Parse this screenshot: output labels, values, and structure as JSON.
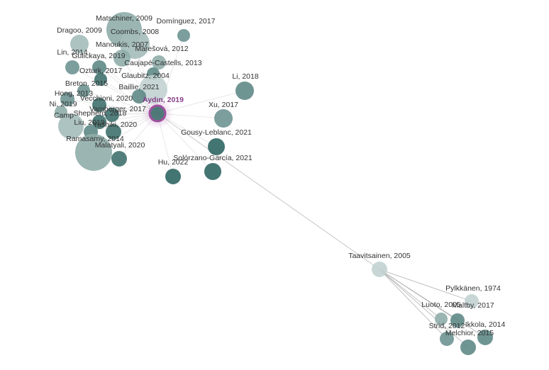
{
  "nodes": [
    {
      "label": "Matschiner, 2009"
    },
    {
      "label": "Domínguez, 2017"
    },
    {
      "label": "Coombs, 2008"
    },
    {
      "label": "Dragoo, 2009"
    },
    {
      "label": "Manoukis, 2007"
    },
    {
      "label": "Lin, 2014"
    },
    {
      "label": "Marešová, 2012"
    },
    {
      "label": "Gulickaya, 2019"
    },
    {
      "label": "Caujapé-Castells, 2013"
    },
    {
      "label": "Ozturk, 2017"
    },
    {
      "label": "Glaubitz, 2004"
    },
    {
      "label": "Breton, 2015"
    },
    {
      "label": "Baillie, 2021"
    },
    {
      "label": "Hong, 2013"
    },
    {
      "label": "Vecchioni, 2020"
    },
    {
      "label": "Ni, 2019"
    },
    {
      "label": "Vamberger, 2017"
    },
    {
      "label": "Camp"
    },
    {
      "label": "Shepherd, 2018"
    },
    {
      "label": "Liu, 2019"
    },
    {
      "label": "Yashiki, 2020"
    },
    {
      "label": "Ramasamy, 2014"
    },
    {
      "label": "Malatyali, 2020"
    },
    {
      "label": "Aydın, 2019"
    },
    {
      "label": "Li, 2018"
    },
    {
      "label": "Xu, 2017"
    },
    {
      "label": "Gousy-Leblanc, 2021"
    },
    {
      "label": "Solórzano-García, 2021"
    },
    {
      "label": "Hu, 2022"
    },
    {
      "label": "Taavitsainen, 2005"
    },
    {
      "label": "Pylkkänen, 1974"
    },
    {
      "label": "Luoto, 2005"
    },
    {
      "label": "Maltby, 2017"
    },
    {
      "label": "Strid, 2012"
    },
    {
      "label": "Ikkola, 2014"
    },
    {
      "label": "Melchior, 2015"
    }
  ]
}
